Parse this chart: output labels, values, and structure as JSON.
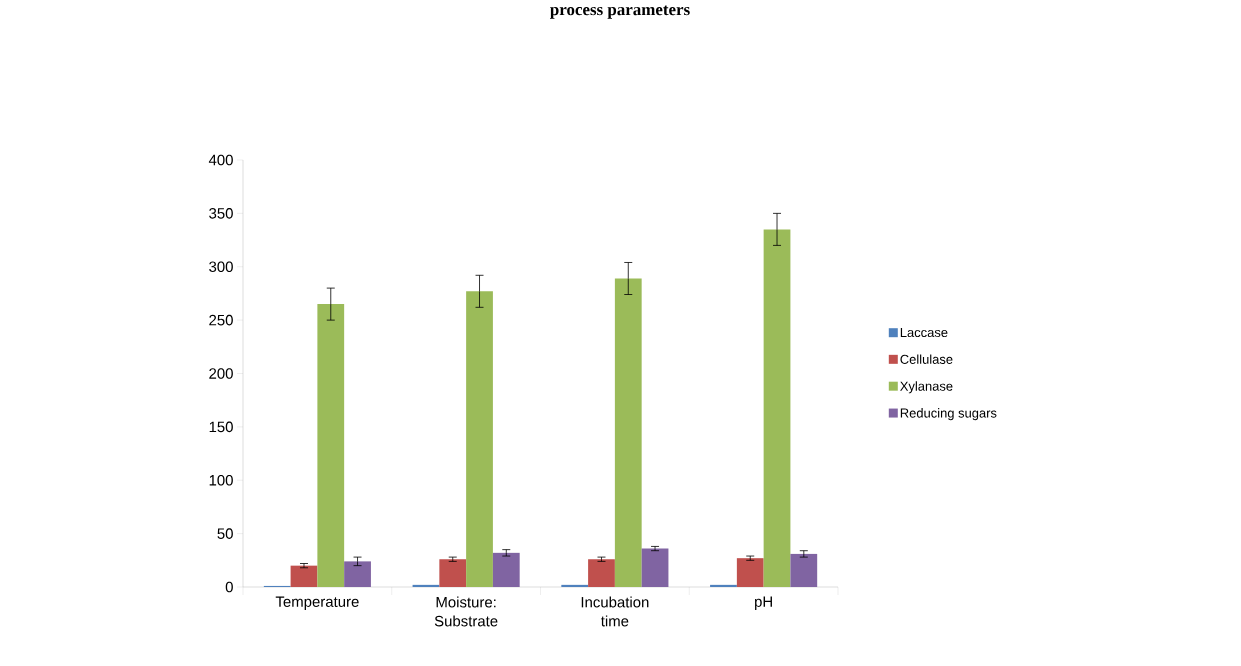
{
  "chart_data": {
    "type": "bar",
    "title": "process parameters",
    "categories": [
      "Temperature",
      "Moisture: Substrate",
      "Incubation time",
      "pH"
    ],
    "series": [
      {
        "name": "Laccase",
        "color": "#4f81bd",
        "values": [
          1,
          2,
          2,
          2
        ]
      },
      {
        "name": "Cellulase",
        "color": "#c0504d",
        "values": [
          20,
          26,
          26,
          27
        ],
        "errors": [
          2,
          2,
          2,
          2
        ]
      },
      {
        "name": "Xylanase",
        "color": "#9bbb59",
        "values": [
          265,
          277,
          289,
          335
        ],
        "errors": [
          15,
          15,
          15,
          15
        ]
      },
      {
        "name": "Reducing sugars",
        "color": "#8064a2",
        "values": [
          24,
          32,
          36,
          31
        ],
        "errors": [
          4,
          3,
          2,
          3
        ]
      }
    ],
    "ylim": [
      0,
      400
    ],
    "yticks": [
      0,
      50,
      100,
      150,
      200,
      250,
      300,
      350,
      400
    ],
    "legend": "right",
    "grid": false
  }
}
